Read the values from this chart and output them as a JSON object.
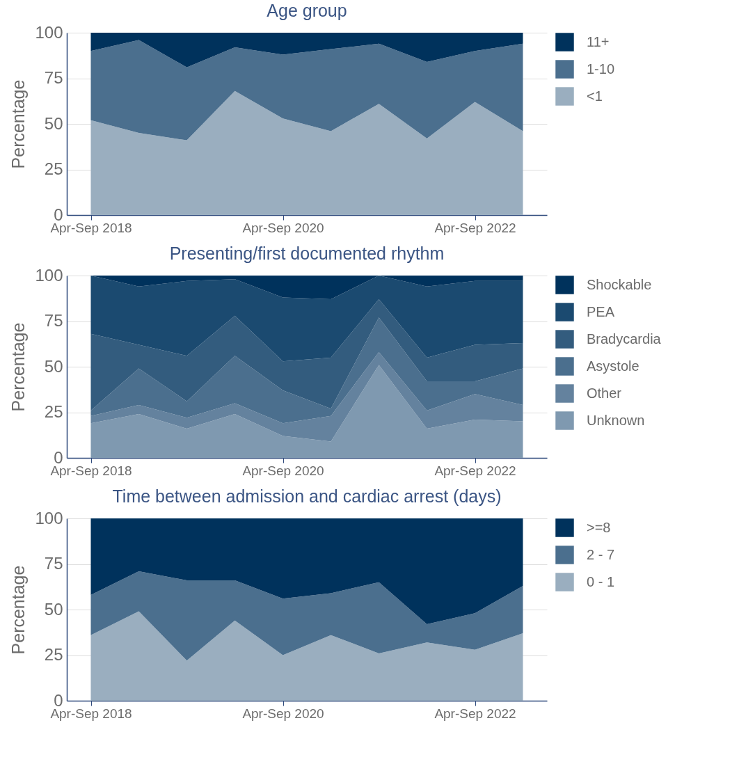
{
  "chart_data": [
    {
      "type": "area",
      "title": "Age group",
      "ylabel": "Percentage",
      "categories": [
        "Apr-Sep 2018",
        null,
        null,
        null,
        "Apr-Sep 2020",
        null,
        null,
        null,
        "Apr-Sep 2022",
        null
      ],
      "stacked": true,
      "ylim": [
        0,
        100
      ],
      "yticks": [
        0,
        25,
        50,
        75,
        100
      ],
      "grid": "y",
      "legend": "right",
      "series": [
        {
          "name": "<1",
          "color": "#9aaebf",
          "values": [
            52,
            45,
            41,
            68,
            53,
            46,
            61,
            42,
            62,
            46
          ]
        },
        {
          "name": "1-10",
          "color": "#4b6f8e",
          "values": [
            38,
            51,
            40,
            24,
            35,
            45,
            33,
            42,
            28,
            48
          ]
        },
        {
          "name": "11+",
          "color": "#00325c",
          "values": [
            10,
            4,
            19,
            8,
            12,
            9,
            6,
            16,
            10,
            6
          ]
        }
      ]
    },
    {
      "type": "area",
      "title": "Presenting/first documented rhythm",
      "ylabel": "Percentage",
      "categories": [
        "Apr-Sep 2018",
        null,
        null,
        null,
        "Apr-Sep 2020",
        null,
        null,
        null,
        "Apr-Sep 2022",
        null
      ],
      "stacked": true,
      "ylim": [
        0,
        100
      ],
      "yticks": [
        0,
        25,
        50,
        75,
        100
      ],
      "grid": "y",
      "legend": "right",
      "series": [
        {
          "name": "Unknown",
          "color": "#7f99b0",
          "values": [
            19,
            24,
            16,
            24,
            12,
            9,
            51,
            16,
            21,
            20
          ]
        },
        {
          "name": "Other",
          "color": "#64829e",
          "values": [
            4,
            5,
            6,
            6,
            7,
            14,
            7,
            10,
            14,
            9
          ]
        },
        {
          "name": "Asystole",
          "color": "#4b6f8e",
          "values": [
            3,
            20,
            9,
            26,
            18,
            4,
            19,
            16,
            7,
            20
          ]
        },
        {
          "name": "Bradycardia",
          "color": "#335c7e",
          "values": [
            42,
            13,
            25,
            22,
            16,
            28,
            10,
            13,
            20,
            14
          ]
        },
        {
          "name": "PEA",
          "color": "#1b4a70",
          "values": [
            32,
            32,
            41,
            20,
            35,
            32,
            13,
            39,
            35,
            34
          ]
        },
        {
          "name": "Shockable",
          "color": "#00325c",
          "values": [
            0,
            6,
            3,
            2,
            12,
            13,
            0,
            6,
            3,
            3
          ]
        }
      ]
    },
    {
      "type": "area",
      "title": "Time between admission and cardiac arrest (days)",
      "ylabel": "Percentage",
      "categories": [
        "Apr-Sep 2018",
        null,
        null,
        null,
        "Apr-Sep 2020",
        null,
        null,
        null,
        "Apr-Sep 2022",
        null
      ],
      "stacked": true,
      "ylim": [
        0,
        100
      ],
      "yticks": [
        0,
        25,
        50,
        75,
        100
      ],
      "grid": "y",
      "legend": "right",
      "series": [
        {
          "name": "0 - 1",
          "color": "#9aaebf",
          "values": [
            36,
            49,
            22,
            44,
            25,
            36,
            26,
            32,
            28,
            37
          ]
        },
        {
          "name": "2 - 7",
          "color": "#4b6f8e",
          "values": [
            22,
            22,
            44,
            22,
            31,
            23,
            39,
            10,
            20,
            26
          ]
        },
        {
          "name": ">=8",
          "color": "#00325c",
          "values": [
            42,
            29,
            34,
            34,
            44,
            41,
            35,
            58,
            52,
            37
          ]
        }
      ]
    }
  ]
}
